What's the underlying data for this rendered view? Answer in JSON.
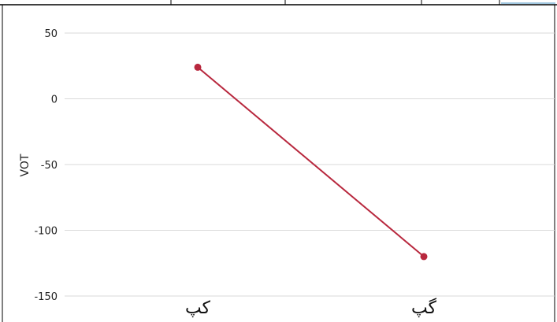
{
  "chart_data": {
    "type": "line",
    "title": "",
    "xlabel": "",
    "ylabel": "VOT",
    "categories": [
      "کپ",
      "گپ"
    ],
    "series": [
      {
        "values": [
          24,
          -120
        ]
      }
    ],
    "ylim": [
      -150,
      50
    ],
    "yticks": [
      50,
      0,
      -50,
      -100,
      -150
    ],
    "grid": true,
    "colors": {
      "line": "#b8283e",
      "grid": "#d9d9d9"
    }
  }
}
